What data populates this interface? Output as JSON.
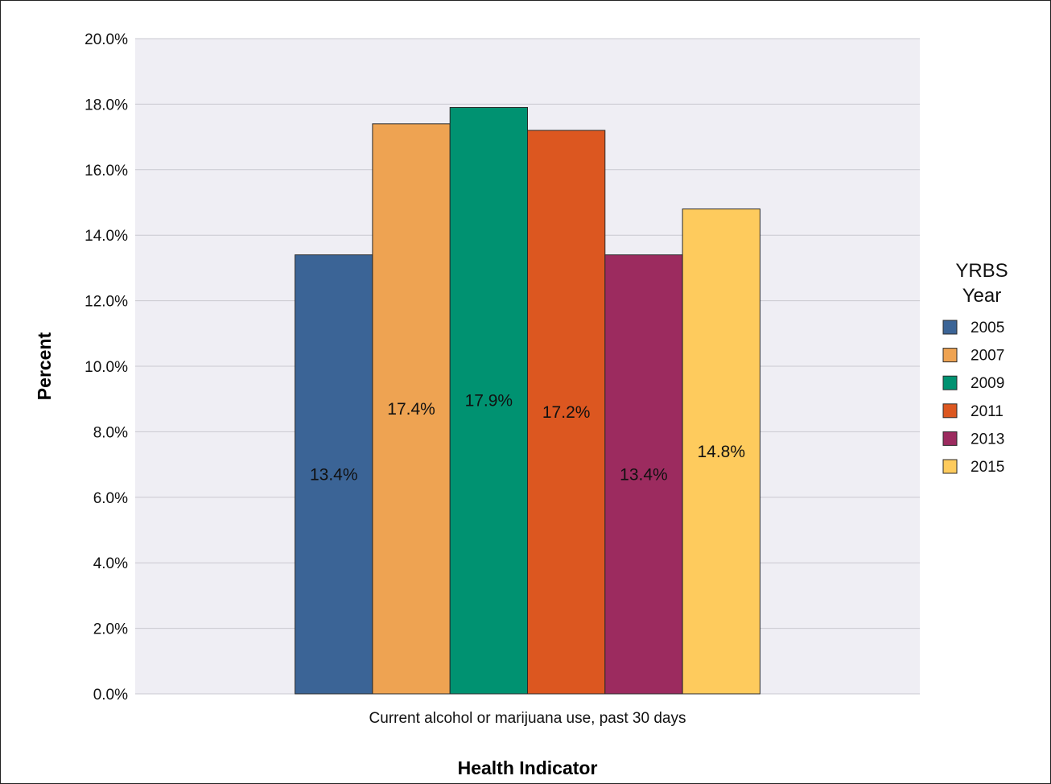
{
  "chart_data": {
    "type": "bar",
    "categories": [
      "Current alcohol or marijuana use, past 30 days"
    ],
    "series": [
      {
        "name": "2005",
        "values": [
          13.4
        ],
        "label": "13.4%",
        "color": "#3b6496"
      },
      {
        "name": "2007",
        "values": [
          17.4
        ],
        "label": "17.4%",
        "color": "#eea352"
      },
      {
        "name": "2009",
        "values": [
          17.9
        ],
        "label": "17.9%",
        "color": "#009271"
      },
      {
        "name": "2011",
        "values": [
          17.2
        ],
        "label": "17.2%",
        "color": "#dc5720"
      },
      {
        "name": "2013",
        "values": [
          13.4
        ],
        "label": "13.4%",
        "color": "#9c2b5f"
      },
      {
        "name": "2015",
        "values": [
          14.8
        ],
        "label": "14.8%",
        "color": "#fecb5d"
      }
    ],
    "xlabel": "Health Indicator",
    "ylabel": "Percent",
    "ylim": [
      0,
      20
    ],
    "yticks": [
      "0.0%",
      "2.0%",
      "4.0%",
      "6.0%",
      "8.0%",
      "10.0%",
      "12.0%",
      "14.0%",
      "16.0%",
      "18.0%",
      "20.0%"
    ],
    "legend": {
      "title_line1": "YRBS",
      "title_line2": "Year",
      "position": "right"
    },
    "grid": true,
    "plot_background": "#efeef4"
  }
}
